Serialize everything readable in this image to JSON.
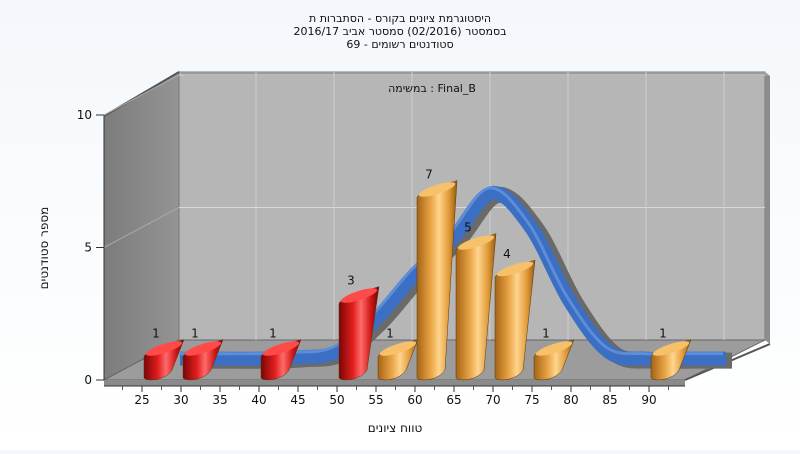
{
  "chart_data": {
    "type": "bar",
    "title_lines": [
      "היסטוגרמת ציונים בקורס - הסתברות ת",
      "בסמסטר  (02/2016)  סמסטר אביב 2016/17",
      "סטודנטים רשומים - 69"
    ],
    "subtitle": "במשימה : Final_B",
    "xlabel": "טווח ציונים",
    "ylabel": "מספר סטודנטים",
    "ylim": [
      0,
      10
    ],
    "y_ticks": [
      "0",
      "5",
      "10"
    ],
    "x_ticks": [
      "25",
      "30",
      "35",
      "40",
      "45",
      "50",
      "55",
      "60",
      "65",
      "70",
      "75",
      "80",
      "85",
      "90"
    ],
    "bars": [
      {
        "x": 25,
        "value": 1,
        "label": "1",
        "color": "red"
      },
      {
        "x": 30,
        "value": 1,
        "label": "1",
        "color": "red"
      },
      {
        "x": 40,
        "value": 1,
        "label": "1",
        "color": "red"
      },
      {
        "x": 50,
        "value": 3,
        "label": "3",
        "color": "red"
      },
      {
        "x": 55,
        "value": 1,
        "label": "1",
        "color": "orange"
      },
      {
        "x": 60,
        "value": 7,
        "label": "7",
        "color": "orange"
      },
      {
        "x": 65,
        "value": 5,
        "label": "5",
        "color": "orange"
      },
      {
        "x": 70,
        "value": 4,
        "label": "4",
        "color": "orange"
      },
      {
        "x": 75,
        "value": 1,
        "label": "1",
        "color": "orange"
      },
      {
        "x": 90,
        "value": 1,
        "label": "1",
        "color": "orange"
      }
    ],
    "curve": {
      "x": [
        25,
        30,
        35,
        40,
        45,
        50,
        55,
        60,
        65,
        70,
        75,
        80,
        85,
        90,
        95
      ],
      "y": [
        0.05,
        0.05,
        0.05,
        0.1,
        0.3,
        1.5,
        3.2,
        4.6,
        6.3,
        5.0,
        2.2,
        0.3,
        0.05,
        0.05,
        0.05
      ]
    },
    "grid": true,
    "colors": {
      "red_bar": "#d81e1e",
      "orange_bar": "#e9a43f",
      "curve": "#3a6fc4",
      "curve_shadow": "#6a6a6a",
      "back_wall": "#b4b4b4",
      "side_wall": "#8a8a8a",
      "floor": "#a0a0a0"
    }
  }
}
